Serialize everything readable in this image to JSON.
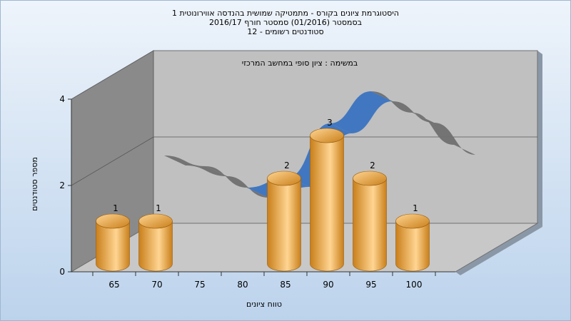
{
  "chart_data": {
    "type": "bar",
    "title_lines": [
      "היסטוגרמת ציונים בקורס - מתמטיקה שמושית בהנדסה אווירונוטית 1",
      "בסמסטר  (01/2016)  סמסטר חורף  2016/17",
      "סטודנטים רשומים - 12"
    ],
    "annotation": "במשימה : ציון סופי במחשב המרכזי",
    "xlabel": "טווח ציונים",
    "ylabel": "מספר סטודנטים",
    "categories": [
      "65",
      "70",
      "75",
      "80",
      "85",
      "90",
      "95",
      "100"
    ],
    "values": [
      1,
      1,
      0,
      0,
      2,
      3,
      2,
      1
    ],
    "data_labels": [
      "1",
      "1",
      "",
      "",
      "2",
      "3",
      "2",
      "1"
    ],
    "y_ticks": [
      "0",
      "2",
      "4"
    ],
    "ylim": [
      0,
      4
    ],
    "grid": false,
    "colors": {
      "bar_light": "#ffd592",
      "bar_dark": "#c97f1a",
      "curve": "#3a73c0",
      "curve_back": "#707070",
      "back_wall": "#c0c0c0",
      "left_wall": "#8a8a8a",
      "floor": "#c8c8c8",
      "background_top": "#eef4fb",
      "background_bottom": "#bcd3ec"
    }
  }
}
